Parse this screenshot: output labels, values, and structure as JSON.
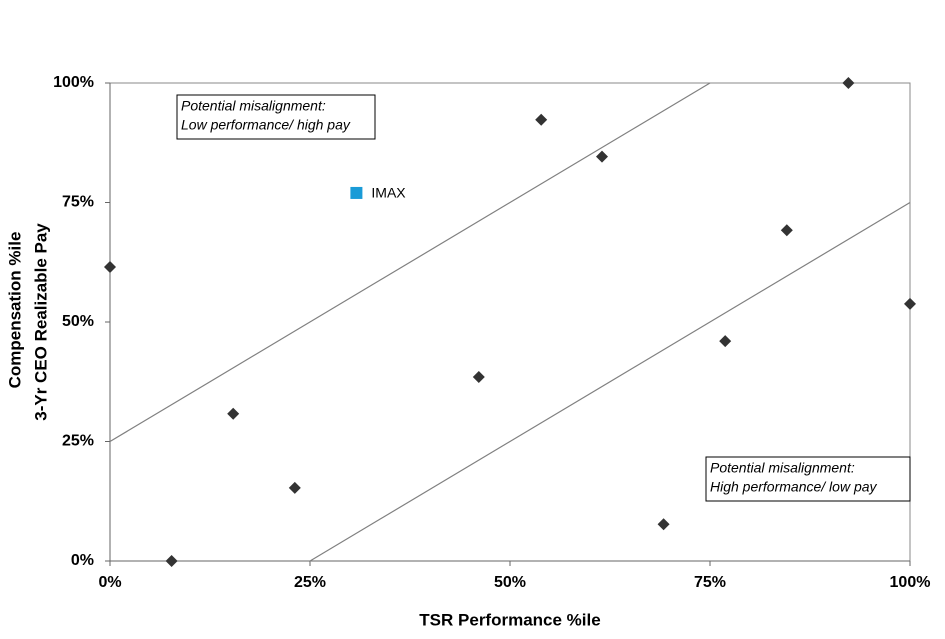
{
  "chart_data": {
    "type": "scatter",
    "x_label": "TSR Performance %ile",
    "y_label": [
      "Compensation %ile",
      "3-Yr CEO Realizable Pay"
    ],
    "xlim": [
      0,
      100
    ],
    "ylim": [
      0,
      100
    ],
    "xticks": [
      {
        "value": 0,
        "label": "0%"
      },
      {
        "value": 25,
        "label": "25%"
      },
      {
        "value": 50,
        "label": "50%"
      },
      {
        "value": 75,
        "label": "75%"
      },
      {
        "value": 100,
        "label": "100%"
      }
    ],
    "yticks": [
      {
        "value": 0,
        "label": "0%"
      },
      {
        "value": 25,
        "label": "25%"
      },
      {
        "value": 50,
        "label": "50%"
      },
      {
        "value": 75,
        "label": "75%"
      },
      {
        "value": 100,
        "label": "100%"
      }
    ],
    "series": [
      {
        "color": "#333333",
        "marker": "diamond",
        "x": [
          0,
          7.7,
          15.4,
          23.1,
          46.1,
          53.9,
          61.5,
          69.2,
          76.9,
          84.6,
          92.3,
          100
        ],
        "values": [
          61.5,
          0,
          30.8,
          15.3,
          38.5,
          92.3,
          84.6,
          7.7,
          46.0,
          69.2,
          100,
          53.8
        ]
      },
      {
        "name": "IMAX",
        "color": "#1a9bd7",
        "marker": "square",
        "x": [
          30.8
        ],
        "values": [
          77.0
        ]
      }
    ],
    "reference_lines": [
      {
        "color": "#808080",
        "x": [
          0,
          75
        ],
        "y": [
          25,
          100
        ]
      },
      {
        "color": "#808080",
        "x": [
          25,
          100
        ],
        "y": [
          0,
          75
        ]
      }
    ],
    "annotations": [
      {
        "lines": [
          "Potential misalignment:",
          "Low performance/ high pay"
        ]
      },
      {
        "lines": [
          "Potential misalignment:",
          "High performance/ low pay"
        ]
      }
    ]
  }
}
